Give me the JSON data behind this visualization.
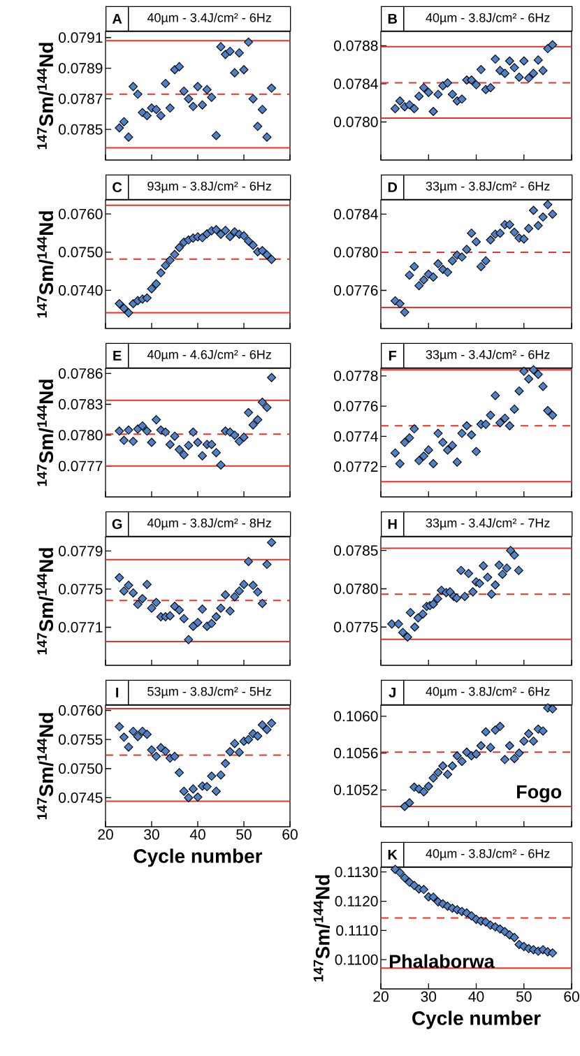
{
  "chart_data": [
    {
      "type": "scatter",
      "title": "A",
      "subtitle": "40µm - 3.4J/cm² - 6Hz",
      "ylabel": "$^{147}$Sm/$^{144}$Nd",
      "marker": "diamond",
      "tick_labels": "y",
      "xlim": [
        20,
        60
      ],
      "xticks": [
        20,
        30,
        40,
        50,
        60
      ],
      "ylim": [
        0.0783,
        0.07914
      ],
      "yticks": [
        0.0785,
        0.0787,
        0.0789,
        0.0791
      ],
      "x": [
        23,
        24,
        25,
        26,
        27,
        28,
        29,
        30,
        31,
        32,
        33,
        34,
        35,
        36,
        37,
        38,
        39,
        40,
        41,
        42,
        43,
        44,
        45,
        46,
        47,
        48,
        49,
        50,
        51,
        52,
        53,
        54,
        55,
        56
      ],
      "series": [
        {
          "color": "#4f81c7",
          "values": [
            0.07851,
            0.07855,
            0.07845,
            0.07878,
            0.07873,
            0.07861,
            0.07859,
            0.07864,
            0.07863,
            0.07859,
            0.0788,
            0.07864,
            0.07889,
            0.07891,
            0.07875,
            0.0787,
            0.07865,
            0.07878,
            0.07866,
            0.07876,
            0.07871,
            0.07846,
            0.07904,
            0.07899,
            0.07901,
            0.07887,
            0.079,
            0.07889,
            0.07907,
            0.0787,
            0.07852,
            0.07863,
            0.07845,
            0.07877
          ]
        }
      ],
      "ref_lines": [
        {
          "axis": "y",
          "value": 0.07838,
          "color": "#ee3124",
          "line_style": "solid"
        },
        {
          "axis": "y",
          "value": 0.07873,
          "color": "#ee3124",
          "line_style": "dashed"
        },
        {
          "axis": "y",
          "value": 0.07908,
          "color": "#ee3124",
          "line_style": "solid"
        }
      ]
    },
    {
      "type": "scatter",
      "title": "B",
      "subtitle": "40µm - 3.8J/cm² - 6Hz",
      "marker": "diamond",
      "tick_labels": "y",
      "xlim": [
        20,
        60
      ],
      "xticks": [
        20,
        30,
        40,
        50,
        60
      ],
      "ylim": [
        0.0776,
        0.07895
      ],
      "yticks": [
        {
          "value": 0.078,
          "label": "0.0780"
        },
        0.0784,
        0.0788
      ],
      "x": [
        23,
        24,
        25,
        26,
        27,
        28,
        29,
        30,
        31,
        32,
        33,
        34,
        35,
        36,
        37,
        38,
        39,
        40,
        41,
        42,
        43,
        44,
        45,
        46,
        47,
        48,
        49,
        50,
        51,
        52,
        53,
        54,
        55,
        56
      ],
      "series": [
        {
          "color": "#4f81c7",
          "values": [
            0.07814,
            0.07822,
            0.07816,
            0.07818,
            0.07814,
            0.07827,
            0.07836,
            0.07831,
            0.07811,
            0.07829,
            0.07838,
            0.07841,
            0.07829,
            0.07822,
            0.07824,
            0.07844,
            0.07844,
            0.07839,
            0.07855,
            0.07834,
            0.07836,
            0.07866,
            0.07854,
            0.07851,
            0.07864,
            0.07857,
            0.07847,
            0.07864,
            0.07846,
            0.07851,
            0.07865,
            0.07854,
            0.07877,
            0.07881
          ]
        }
      ],
      "ref_lines": [
        {
          "axis": "y",
          "value": 0.07804,
          "color": "#ee3124",
          "line_style": "solid"
        },
        {
          "axis": "y",
          "value": 0.07841,
          "color": "#ee3124",
          "line_style": "dashed"
        },
        {
          "axis": "y",
          "value": 0.07879,
          "color": "#ee3124",
          "line_style": "solid"
        }
      ]
    },
    {
      "type": "scatter",
      "title": "C",
      "subtitle": "93µm - 3.8J/cm² - 6Hz",
      "ylabel": "$^{147}$Sm/$^{144}$Nd",
      "marker": "diamond",
      "tick_labels": "y",
      "xlim": [
        20,
        60
      ],
      "xticks": [
        20,
        30,
        40,
        50,
        60
      ],
      "ylim": [
        0.073,
        0.07637
      ],
      "yticks": [
        {
          "value": 0.074,
          "label": "0.0740"
        },
        {
          "value": 0.075,
          "label": "0.0750"
        },
        {
          "value": 0.076,
          "label": "0.0760"
        }
      ],
      "x": [
        23,
        24,
        25,
        26,
        27,
        28,
        29,
        30,
        31,
        32,
        33,
        34,
        35,
        36,
        37,
        38,
        39,
        40,
        41,
        42,
        43,
        44,
        45,
        46,
        47,
        48,
        49,
        50,
        51,
        52,
        53,
        54,
        55,
        56
      ],
      "series": [
        {
          "color": "#4f81c7",
          "values": [
            0.07365,
            0.07353,
            0.07341,
            0.07365,
            0.07373,
            0.07377,
            0.0738,
            0.07404,
            0.07417,
            0.07446,
            0.07465,
            0.07479,
            0.07494,
            0.07512,
            0.07526,
            0.07532,
            0.07537,
            0.0754,
            0.07538,
            0.07548,
            0.07556,
            0.07559,
            0.07547,
            0.07557,
            0.07541,
            0.07553,
            0.07547,
            0.07543,
            0.07529,
            0.07518,
            0.07501,
            0.07504,
            0.07493,
            0.07481
          ]
        }
      ],
      "ref_lines": [
        {
          "axis": "y",
          "value": 0.07341,
          "color": "#ee3124",
          "line_style": "solid"
        },
        {
          "axis": "y",
          "value": 0.07482,
          "color": "#ee3124",
          "line_style": "dashed"
        },
        {
          "axis": "y",
          "value": 0.07623,
          "color": "#ee3124",
          "line_style": "solid"
        }
      ]
    },
    {
      "type": "scatter",
      "title": "D",
      "subtitle": "33µm - 3.8J/cm² - 6Hz",
      "marker": "diamond",
      "tick_labels": "y",
      "xlim": [
        20,
        60
      ],
      "xticks": [
        20,
        30,
        40,
        50,
        60
      ],
      "ylim": [
        0.0772,
        0.07855
      ],
      "yticks": [
        0.0776,
        {
          "value": 0.078,
          "label": "0.0780"
        },
        0.0784
      ],
      "x": [
        23,
        24,
        25,
        26,
        27,
        28,
        29,
        30,
        31,
        32,
        33,
        34,
        35,
        36,
        37,
        38,
        39,
        40,
        41,
        42,
        43,
        44,
        45,
        46,
        47,
        48,
        49,
        50,
        51,
        52,
        53,
        54,
        55,
        56
      ],
      "series": [
        {
          "color": "#4f81c7",
          "values": [
            0.07749,
            0.07746,
            0.07737,
            0.07776,
            0.07785,
            0.07765,
            0.07771,
            0.07777,
            0.07774,
            0.07788,
            0.07782,
            0.07779,
            0.07791,
            0.07797,
            0.07795,
            0.07803,
            0.0782,
            0.07811,
            0.07785,
            0.07791,
            0.07813,
            0.07819,
            0.0782,
            0.07829,
            0.07829,
            0.07821,
            0.07815,
            0.07814,
            0.07825,
            0.07844,
            0.07828,
            0.07837,
            0.0785,
            0.0784
          ]
        }
      ],
      "ref_lines": [
        {
          "axis": "y",
          "value": 0.07742,
          "color": "#ee3124",
          "line_style": "solid"
        },
        {
          "axis": "y",
          "value": 0.078,
          "color": "#ee3124",
          "line_style": "dashed"
        }
      ]
    },
    {
      "type": "scatter",
      "title": "E",
      "subtitle": "40µm - 4.6J/cm² - 6Hz",
      "ylabel": "$^{147}$Sm/$^{144}$Nd",
      "marker": "diamond",
      "tick_labels": "y",
      "xlim": [
        20,
        60
      ],
      "xticks": [
        20,
        30,
        40,
        50,
        60
      ],
      "ylim": [
        0.0774,
        0.07865
      ],
      "yticks": [
        0.0777,
        {
          "value": 0.078,
          "label": "0.0780"
        },
        0.0783,
        0.0786
      ],
      "x": [
        23,
        24,
        25,
        26,
        27,
        28,
        29,
        30,
        31,
        32,
        33,
        34,
        35,
        36,
        37,
        38,
        39,
        40,
        41,
        42,
        43,
        44,
        45,
        46,
        47,
        48,
        49,
        50,
        51,
        52,
        53,
        54,
        55,
        56
      ],
      "series": [
        {
          "color": "#4f81c7",
          "values": [
            0.07804,
            0.07795,
            0.07805,
            0.07794,
            0.07806,
            0.07809,
            0.07804,
            0.07793,
            0.07815,
            0.07805,
            0.07803,
            0.07791,
            0.07799,
            0.07786,
            0.07781,
            0.0779,
            0.07803,
            0.07793,
            0.0778,
            0.07791,
            0.07791,
            0.07783,
            0.07771,
            0.07804,
            0.07803,
            0.078,
            0.07794,
            0.07798,
            0.07822,
            0.0781,
            0.07815,
            0.07832,
            0.07827,
            0.07856
          ]
        }
      ],
      "ref_lines": [
        {
          "axis": "y",
          "value": 0.0777,
          "color": "#ee3124",
          "line_style": "solid"
        },
        {
          "axis": "y",
          "value": 0.07801,
          "color": "#ee3124",
          "line_style": "dashed"
        },
        {
          "axis": "y",
          "value": 0.07834,
          "color": "#ee3124",
          "line_style": "solid"
        }
      ]
    },
    {
      "type": "scatter",
      "title": "F",
      "subtitle": "33µm - 3.4J/cm² - 6Hz",
      "marker": "diamond",
      "tick_labels": "y",
      "xlim": [
        20,
        60
      ],
      "xticks": [
        20,
        30,
        40,
        50,
        60
      ],
      "ylim": [
        0.077,
        0.07785
      ],
      "yticks": [
        0.0772,
        0.0774,
        0.0776,
        0.0778
      ],
      "x": [
        23,
        24,
        25,
        26,
        27,
        28,
        29,
        30,
        31,
        32,
        33,
        34,
        35,
        36,
        37,
        38,
        39,
        40,
        41,
        42,
        43,
        44,
        45,
        46,
        47,
        48,
        49,
        50,
        51,
        52,
        53,
        54,
        55,
        56
      ],
      "series": [
        {
          "color": "#4f81c7",
          "values": [
            0.07729,
            0.07722,
            0.07736,
            0.07739,
            0.07745,
            0.07724,
            0.07727,
            0.07731,
            0.07722,
            0.07742,
            0.07736,
            0.07731,
            0.07734,
            0.07723,
            0.07742,
            0.07747,
            0.07741,
            0.0773,
            0.07748,
            0.07748,
            0.07754,
            0.07767,
            0.07749,
            0.07752,
            0.07747,
            0.07758,
            0.0777,
            0.07783,
            0.07778,
            0.07784,
            0.07781,
            0.07773,
            0.07757,
            0.07754
          ]
        }
      ],
      "ref_lines": [
        {
          "axis": "y",
          "value": 0.0771,
          "color": "#ee3124",
          "line_style": "solid"
        },
        {
          "axis": "y",
          "value": 0.07747,
          "color": "#ee3124",
          "line_style": "dashed"
        },
        {
          "axis": "y",
          "value": 0.07784,
          "color": "#ee3124",
          "line_style": "solid"
        }
      ]
    },
    {
      "type": "scatter",
      "title": "G",
      "subtitle": "40µm - 3.8J/cm² - 8Hz",
      "ylabel": "$^{147}$Sm/$^{144}$Nd",
      "marker": "diamond",
      "tick_labels": "y",
      "xlim": [
        20,
        60
      ],
      "xticks": [
        20,
        30,
        40,
        50,
        60
      ],
      "ylim": [
        0.0767,
        0.07805
      ],
      "yticks": [
        0.0771,
        0.0775,
        0.0779
      ],
      "x": [
        23,
        24,
        25,
        26,
        27,
        28,
        29,
        30,
        31,
        32,
        33,
        34,
        35,
        36,
        37,
        38,
        39,
        40,
        41,
        42,
        43,
        44,
        45,
        46,
        47,
        48,
        49,
        50,
        51,
        52,
        53,
        54,
        55,
        56
      ],
      "series": [
        {
          "color": "#4f81c7",
          "values": [
            0.07762,
            0.07748,
            0.07754,
            0.07746,
            0.07734,
            0.0774,
            0.07755,
            0.0773,
            0.07736,
            0.07721,
            0.07721,
            0.07722,
            0.07732,
            0.07728,
            0.07719,
            0.07697,
            0.07711,
            0.07715,
            0.07729,
            0.07711,
            0.07714,
            0.07721,
            0.0773,
            0.07744,
            0.07727,
            0.07742,
            0.07748,
            0.07755,
            0.07779,
            0.07754,
            0.07747,
            0.07735,
            0.07776,
            0.07799
          ]
        }
      ],
      "ref_lines": [
        {
          "axis": "y",
          "value": 0.07695,
          "color": "#ee3124",
          "line_style": "solid"
        },
        {
          "axis": "y",
          "value": 0.07738,
          "color": "#ee3124",
          "line_style": "dashed"
        },
        {
          "axis": "y",
          "value": 0.07781,
          "color": "#ee3124",
          "line_style": "solid"
        }
      ]
    },
    {
      "type": "scatter",
      "title": "H",
      "subtitle": "33µm - 3.4J/cm² - 7Hz",
      "marker": "diamond",
      "tick_labels": "y",
      "xlim": [
        20,
        60
      ],
      "xticks": [
        20,
        30,
        40,
        50,
        60
      ],
      "ylim": [
        0.077,
        0.07868
      ],
      "yticks": [
        0.0775,
        {
          "value": 0.078,
          "label": "0.0780"
        },
        0.0785
      ],
      "x": [
        22.3,
        23.2,
        23.7,
        24.6,
        25.6,
        26.2,
        27.1,
        27.8,
        28.8,
        29.6,
        30.3,
        31,
        31.9,
        32.7,
        33.7,
        34.5,
        35.3,
        35.9,
        36.8,
        37.6,
        38.4,
        39.3,
        40,
        40.7,
        41.5,
        42.4,
        43.2,
        44,
        44.8,
        45.5,
        46.4,
        47.2,
        48,
        48.9
      ],
      "series": [
        {
          "color": "#4f81c7",
          "values": [
            0.07754,
            null,
            0.07754,
            0.07743,
            0.07737,
            0.07769,
            0.0775,
            0.07762,
            0.07767,
            0.07777,
            0.07778,
            0.0778,
            0.07787,
            0.07798,
            0.07795,
            0.07796,
            0.0779,
            0.07788,
            0.07824,
            0.0779,
            0.0782,
            0.07796,
            0.07809,
            0.07807,
            0.0783,
            0.07815,
            0.07793,
            0.07805,
            0.07831,
            0.07819,
            0.07827,
            0.0785,
            0.07844,
            0.07824
          ]
        }
      ],
      "ref_lines": [
        {
          "axis": "y",
          "value": 0.07734,
          "color": "#ee3124",
          "line_style": "solid"
        },
        {
          "axis": "y",
          "value": 0.07793,
          "color": "#ee3124",
          "line_style": "dashed"
        },
        {
          "axis": "y",
          "value": 0.07853,
          "color": "#ee3124",
          "line_style": "solid"
        }
      ]
    },
    {
      "type": "scatter",
      "title": "I",
      "subtitle": "53µm - 3.8J/cm² - 5Hz",
      "ylabel": "$^{147}$Sm/$^{144}$Nd",
      "xlabel": "Cycle number",
      "marker": "diamond",
      "xlim": [
        20,
        60
      ],
      "xticks": [
        20,
        30,
        40,
        50,
        60
      ],
      "ylim": [
        0.074,
        0.07609
      ],
      "yticks": [
        0.0745,
        {
          "value": 0.075,
          "label": "0.0750"
        },
        0.0755,
        {
          "value": 0.076,
          "label": "0.0760"
        }
      ],
      "x": [
        23,
        24,
        25,
        26,
        27,
        28,
        29,
        30,
        31,
        32,
        33,
        34,
        35,
        36,
        37,
        38,
        39,
        40,
        41,
        42,
        43,
        44,
        45,
        46,
        47,
        48,
        49,
        50,
        51,
        52,
        53,
        54,
        55,
        56
      ],
      "series": [
        {
          "color": "#4f81c7",
          "values": [
            0.07572,
            0.07554,
            0.07537,
            0.07564,
            0.07555,
            0.07564,
            0.07559,
            0.07532,
            0.07521,
            0.07536,
            0.0753,
            0.07518,
            0.07521,
            0.07493,
            0.07461,
            0.0745,
            0.07465,
            0.07451,
            0.0747,
            0.07469,
            0.07487,
            0.07461,
            0.07489,
            0.07509,
            0.07529,
            0.07543,
            0.07528,
            0.07547,
            0.0755,
            0.0756,
            0.07556,
            0.07575,
            0.07567,
            0.07578
          ]
        }
      ],
      "ref_lines": [
        {
          "axis": "y",
          "value": 0.07444,
          "color": "#ee3124",
          "line_style": "solid"
        },
        {
          "axis": "y",
          "value": 0.07523,
          "color": "#ee3124",
          "line_style": "dashed"
        },
        {
          "axis": "y",
          "value": 0.07603,
          "color": "#ee3124",
          "line_style": "solid"
        }
      ]
    },
    {
      "type": "scatter",
      "title": "J",
      "subtitle": "40µm - 3.8J/cm² - 6Hz",
      "annotations": [
        "Fogo"
      ],
      "marker": "diamond",
      "tick_labels": "y",
      "xlim": [
        20,
        60
      ],
      "xticks": [
        20,
        30,
        40,
        50,
        60
      ],
      "ylim": [
        0.1048,
        0.10612
      ],
      "yticks": [
        0.1052,
        0.1056,
        {
          "value": 0.106,
          "label": "0.1060"
        }
      ],
      "x": [
        25,
        26,
        27,
        28,
        29,
        30,
        31,
        32,
        33,
        34,
        35,
        36,
        37,
        38,
        39,
        40,
        41,
        42,
        43,
        44,
        45,
        46,
        47,
        48,
        49,
        50,
        51,
        52,
        53,
        54,
        55,
        56
      ],
      "series": [
        {
          "color": "#4f81c7",
          "values": [
            0.10502,
            0.10506,
            0.10523,
            0.10521,
            0.10518,
            0.10524,
            0.10533,
            0.10539,
            0.10546,
            0.10537,
            0.10546,
            0.10557,
            0.10551,
            0.10561,
            0.10557,
            0.10559,
            0.10568,
            0.10583,
            0.10566,
            0.10585,
            0.10589,
            0.10553,
            0.10568,
            0.10554,
            0.1056,
            0.10573,
            0.10581,
            0.10573,
            0.10586,
            0.10584,
            0.10609,
            0.10608
          ]
        }
      ],
      "ref_lines": [
        {
          "axis": "y",
          "value": 0.10502,
          "color": "#ee3124",
          "line_style": "solid"
        },
        {
          "axis": "y",
          "value": 0.10561,
          "color": "#ee3124",
          "line_style": "dashed"
        }
      ]
    },
    {
      "type": "scatter",
      "title": "K",
      "subtitle": "40µm - 3.8J/cm² - 6Hz",
      "ylabel": "$^{147}$Sm/$^{144}$Nd",
      "xlabel": "Cycle number",
      "annotations": [
        "Phalaborwa"
      ],
      "marker": "diamond",
      "xlim": [
        20,
        60
      ],
      "xticks": [
        20,
        30,
        40,
        50,
        60
      ],
      "ylim": [
        0.109,
        0.11316
      ],
      "yticks": [
        {
          "value": 0.11,
          "label": "0.1100"
        },
        {
          "value": 0.111,
          "label": "0.1110"
        },
        {
          "value": 0.112,
          "label": "0.1120"
        },
        {
          "value": 0.113,
          "label": "0.1130"
        }
      ],
      "x": [
        23,
        24,
        25,
        26,
        27,
        28,
        29,
        30,
        31,
        32,
        33,
        34,
        35,
        36,
        37,
        38,
        39,
        40,
        41,
        42,
        43,
        44,
        45,
        46,
        47,
        48,
        49,
        50,
        51,
        52,
        53,
        54,
        55,
        56
      ],
      "series": [
        {
          "color": "#4f81c7",
          "values": [
            0.11309,
            0.11298,
            0.1128,
            0.11265,
            0.11254,
            0.11242,
            0.1124,
            0.11215,
            0.11214,
            0.11198,
            0.11191,
            0.11183,
            0.11176,
            0.11171,
            0.11165,
            0.1116,
            0.1115,
            0.11138,
            0.11132,
            0.11129,
            0.11118,
            0.11112,
            0.11105,
            0.11096,
            0.11085,
            0.11076,
            0.11052,
            0.11045,
            0.11038,
            0.11034,
            0.11029,
            0.11034,
            0.11027,
            0.11023
          ]
        }
      ],
      "ref_lines": [
        {
          "axis": "y",
          "value": 0.10971,
          "color": "#ee3124",
          "line_style": "solid"
        },
        {
          "axis": "y",
          "value": 0.11143,
          "color": "#ee3124",
          "line_style": "dashed"
        }
      ]
    }
  ]
}
